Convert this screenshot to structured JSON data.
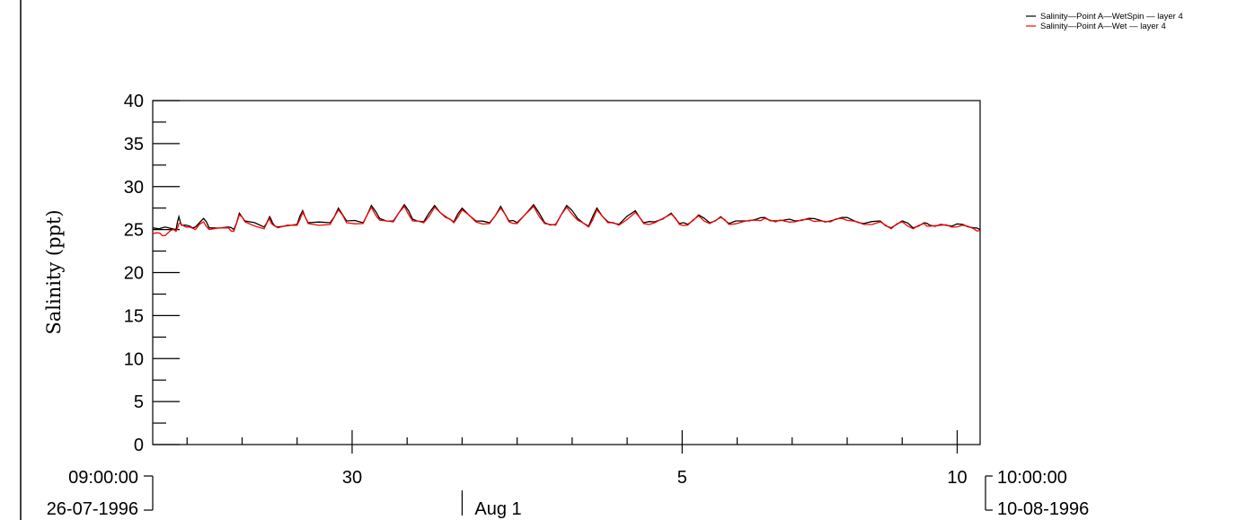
{
  "chart_data": {
    "type": "line",
    "ylabel": "Salinity (ppt)",
    "ylim": [
      0,
      40
    ],
    "y_ticks": [
      "0",
      "5",
      "10",
      "15",
      "20",
      "25",
      "30",
      "35",
      "40"
    ],
    "x_tick_labels": [
      {
        "label": "30",
        "day": 30.0
      },
      {
        "label": "5",
        "day": 36.0
      },
      {
        "label": "10",
        "day": 41.0
      }
    ],
    "x_month_label": {
      "label": "Aug 1",
      "day": 32.0
    },
    "x_start": {
      "time": "09:00:00",
      "date": "26-07-1996"
    },
    "x_end": {
      "time": "10:00:00",
      "date": "10-08-1996"
    },
    "x_range_days": [
      26.375,
      41.4167
    ],
    "x_units": "day of July 1996 (days past 31 continue into August)",
    "grid": false,
    "legend_position": "top-right",
    "series": [
      {
        "name": "Salinity—Point A—WetSpin — layer 4",
        "color": "#000000",
        "x": [
          26.375,
          26.6,
          26.8,
          26.85,
          26.9,
          27.05,
          27.15,
          27.3,
          27.4,
          27.75,
          27.85,
          27.95,
          28.05,
          28.4,
          28.5,
          28.55,
          28.65,
          29.0,
          29.1,
          29.2,
          29.6,
          29.75,
          29.9,
          30.2,
          30.35,
          30.5,
          30.75,
          30.95,
          31.1,
          31.3,
          31.5,
          31.7,
          31.85,
          32.0,
          32.25,
          32.5,
          32.7,
          32.85,
          33.0,
          33.3,
          33.5,
          33.7,
          33.9,
          34.1,
          34.3,
          34.45,
          34.65,
          34.85,
          35.15,
          35.3,
          35.5,
          35.8,
          35.95,
          36.1,
          36.3,
          36.5,
          36.7,
          36.85,
          37.1,
          37.35,
          37.5,
          37.7,
          37.85,
          38.05,
          38.3,
          38.5,
          38.7,
          38.9,
          39.1,
          39.3,
          39.6,
          39.8,
          40.0,
          40.2,
          40.4,
          40.5,
          40.7,
          40.9,
          41.1,
          41.3,
          41.4167
        ],
        "y": [
          25.2,
          25.3,
          25.0,
          26.5,
          25.5,
          25.4,
          25.3,
          26.3,
          25.2,
          25.3,
          25.0,
          26.9,
          26.0,
          25.3,
          26.5,
          25.8,
          25.3,
          25.6,
          27.2,
          25.8,
          25.8,
          27.5,
          26.0,
          25.8,
          27.8,
          26.3,
          26.0,
          27.9,
          26.2,
          25.9,
          27.8,
          26.5,
          25.9,
          27.5,
          26.0,
          25.8,
          27.7,
          26.0,
          25.8,
          27.9,
          25.8,
          25.6,
          27.8,
          26.3,
          25.4,
          27.5,
          25.9,
          25.6,
          27.2,
          25.8,
          25.9,
          26.9,
          25.7,
          25.6,
          26.7,
          25.8,
          26.5,
          25.7,
          26.0,
          26.2,
          26.4,
          26.0,
          26.1,
          26.0,
          26.3,
          26.1,
          26.0,
          26.4,
          26.1,
          25.7,
          26.0,
          25.2,
          26.0,
          25.2,
          25.8,
          25.5,
          25.6,
          25.4,
          25.6,
          25.2,
          25.0
        ]
      },
      {
        "name": "Salinity—Point A—Wet — layer 4",
        "color": "#ff0000",
        "x": [
          26.375,
          26.5,
          26.6,
          26.7,
          26.8,
          26.85,
          26.9,
          27.05,
          27.15,
          27.3,
          27.4,
          27.75,
          27.85,
          27.95,
          28.05,
          28.4,
          28.5,
          28.55,
          28.65,
          29.0,
          29.1,
          29.2,
          29.6,
          29.75,
          29.9,
          30.2,
          30.35,
          30.5,
          30.75,
          30.95,
          31.1,
          31.3,
          31.5,
          31.7,
          31.85,
          32.0,
          32.25,
          32.5,
          32.7,
          32.85,
          33.0,
          33.3,
          33.5,
          33.7,
          33.9,
          34.1,
          34.3,
          34.45,
          34.65,
          34.85,
          35.15,
          35.3,
          35.5,
          35.8,
          35.95,
          36.1,
          36.3,
          36.5,
          36.7,
          36.85,
          37.1,
          37.35,
          37.5,
          37.7,
          37.85,
          38.05,
          38.3,
          38.5,
          38.7,
          38.9,
          39.1,
          39.3,
          39.6,
          39.8,
          40.0,
          40.2,
          40.4,
          40.5,
          40.7,
          40.9,
          41.1,
          41.3,
          41.4167
        ],
        "y": [
          24.5,
          24.6,
          24.3,
          24.9,
          24.8,
          25.7,
          25.6,
          25.3,
          25.0,
          25.9,
          25.0,
          25.2,
          24.8,
          26.7,
          25.9,
          25.1,
          26.3,
          25.6,
          25.2,
          25.5,
          27.0,
          25.7,
          25.6,
          27.3,
          25.8,
          25.7,
          27.6,
          26.1,
          25.9,
          27.7,
          26.0,
          25.8,
          27.6,
          26.4,
          25.8,
          27.3,
          25.9,
          25.7,
          27.5,
          25.9,
          25.7,
          27.7,
          25.7,
          25.5,
          27.6,
          26.1,
          25.3,
          27.3,
          25.8,
          25.5,
          27.0,
          25.7,
          25.8,
          26.8,
          25.6,
          25.5,
          26.6,
          25.7,
          26.4,
          25.6,
          25.9,
          26.1,
          26.3,
          25.9,
          26.0,
          25.9,
          26.2,
          26.0,
          25.9,
          26.3,
          26.0,
          25.6,
          25.9,
          25.1,
          25.9,
          25.1,
          25.7,
          25.4,
          25.5,
          25.3,
          25.5,
          25.1,
          24.9
        ]
      }
    ]
  }
}
